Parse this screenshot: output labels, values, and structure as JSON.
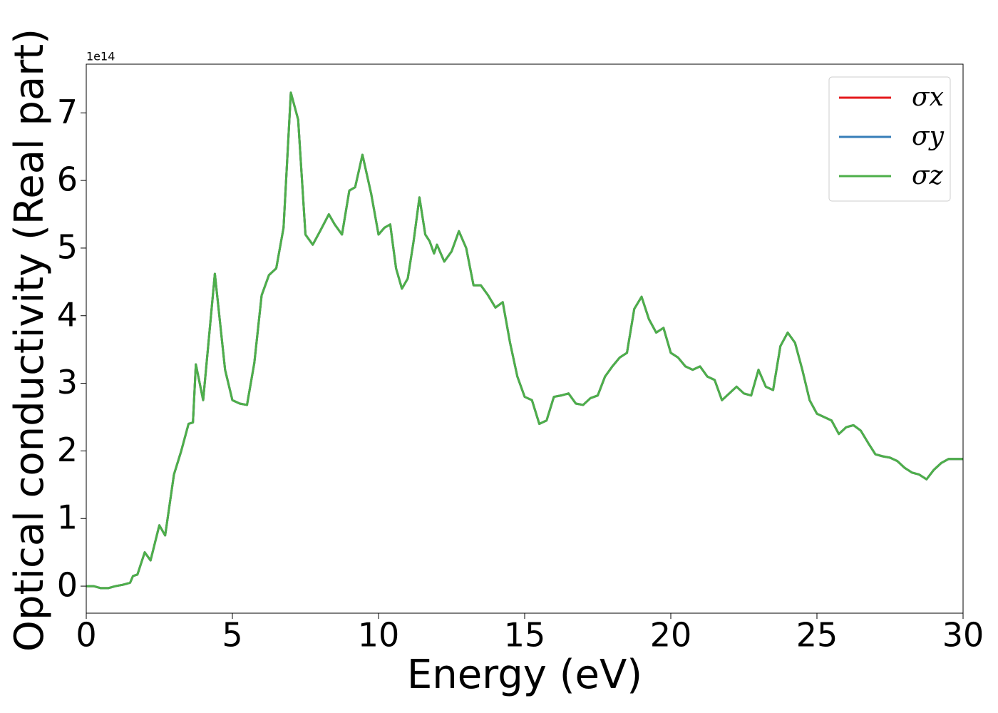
{
  "chart_data": {
    "type": "line",
    "xlabel": "Energy (eV)",
    "ylabel": "Optical conductivity (Real part)",
    "y_offset_label": "1e14",
    "x": [
      0,
      0.25,
      0.5,
      0.75,
      1.0,
      1.25,
      1.5,
      1.6,
      1.75,
      2.0,
      2.2,
      2.5,
      2.7,
      3.0,
      3.25,
      3.5,
      3.65,
      3.75,
      4.0,
      4.4,
      4.75,
      5.0,
      5.25,
      5.5,
      5.75,
      6.0,
      6.25,
      6.5,
      6.75,
      7.0,
      7.25,
      7.5,
      7.75,
      8.0,
      8.3,
      8.5,
      8.75,
      9.0,
      9.2,
      9.45,
      9.75,
      10.0,
      10.2,
      10.4,
      10.6,
      10.8,
      11.0,
      11.2,
      11.4,
      11.6,
      11.75,
      11.9,
      12.0,
      12.25,
      12.5,
      12.75,
      13.0,
      13.25,
      13.5,
      13.75,
      14.0,
      14.25,
      14.5,
      14.75,
      15.0,
      15.25,
      15.5,
      15.75,
      16.0,
      16.25,
      16.5,
      16.75,
      17.0,
      17.25,
      17.5,
      17.75,
      18.0,
      18.25,
      18.5,
      18.75,
      19.0,
      19.25,
      19.5,
      19.75,
      20.0,
      20.25,
      20.5,
      20.75,
      21.0,
      21.25,
      21.5,
      21.75,
      22.0,
      22.25,
      22.5,
      22.75,
      23.0,
      23.25,
      23.5,
      23.75,
      24.0,
      24.25,
      24.5,
      24.75,
      25.0,
      25.25,
      25.5,
      25.75,
      26.0,
      26.25,
      26.5,
      26.75,
      27.0,
      27.25,
      27.5,
      27.75,
      28.0,
      28.25,
      28.5,
      28.75,
      29.0,
      29.25,
      29.5,
      29.75,
      30.0
    ],
    "series": [
      {
        "name": "σx",
        "color": "#e41a1c",
        "values": [
          0,
          0,
          -0.03,
          -0.03,
          0,
          0.02,
          0.05,
          0.15,
          0.17,
          0.5,
          0.38,
          0.9,
          0.75,
          1.65,
          2.0,
          2.4,
          2.42,
          3.28,
          2.75,
          4.62,
          3.2,
          2.75,
          2.7,
          2.68,
          3.3,
          4.3,
          4.6,
          4.7,
          5.3,
          7.3,
          6.9,
          5.2,
          5.05,
          5.25,
          5.5,
          5.35,
          5.2,
          5.85,
          5.9,
          6.38,
          5.8,
          5.2,
          5.3,
          5.35,
          4.7,
          4.4,
          4.55,
          5.1,
          5.75,
          5.2,
          5.1,
          4.92,
          5.05,
          4.8,
          4.95,
          5.25,
          5.0,
          4.45,
          4.45,
          4.3,
          4.12,
          4.2,
          3.6,
          3.1,
          2.8,
          2.75,
          2.4,
          2.45,
          2.8,
          2.82,
          2.85,
          2.7,
          2.68,
          2.78,
          2.82,
          3.1,
          3.25,
          3.38,
          3.45,
          4.1,
          4.28,
          3.95,
          3.75,
          3.82,
          3.45,
          3.38,
          3.25,
          3.2,
          3.25,
          3.1,
          3.05,
          2.75,
          2.85,
          2.95,
          2.85,
          2.82,
          3.2,
          2.95,
          2.9,
          3.55,
          3.75,
          3.6,
          3.2,
          2.75,
          2.55,
          2.5,
          2.45,
          2.25,
          2.35,
          2.38,
          2.3,
          2.12,
          1.95,
          1.92,
          1.9,
          1.85,
          1.75,
          1.68,
          1.65,
          1.58,
          1.72,
          1.82,
          1.88,
          1.88,
          1.88
        ]
      },
      {
        "name": "σy",
        "color": "#377eb8",
        "values": [
          0,
          0,
          -0.03,
          -0.03,
          0,
          0.02,
          0.05,
          0.15,
          0.17,
          0.5,
          0.38,
          0.9,
          0.75,
          1.65,
          2.0,
          2.4,
          2.42,
          3.28,
          2.75,
          4.62,
          3.2,
          2.75,
          2.7,
          2.68,
          3.3,
          4.3,
          4.6,
          4.7,
          5.3,
          7.3,
          6.9,
          5.2,
          5.05,
          5.25,
          5.5,
          5.35,
          5.2,
          5.85,
          5.9,
          6.38,
          5.8,
          5.2,
          5.3,
          5.35,
          4.7,
          4.4,
          4.55,
          5.1,
          5.75,
          5.2,
          5.1,
          4.92,
          5.05,
          4.8,
          4.95,
          5.25,
          5.0,
          4.45,
          4.45,
          4.3,
          4.12,
          4.2,
          3.6,
          3.1,
          2.8,
          2.75,
          2.4,
          2.45,
          2.8,
          2.82,
          2.85,
          2.7,
          2.68,
          2.78,
          2.82,
          3.1,
          3.25,
          3.38,
          3.45,
          4.1,
          4.28,
          3.95,
          3.75,
          3.82,
          3.45,
          3.38,
          3.25,
          3.2,
          3.25,
          3.1,
          3.05,
          2.75,
          2.85,
          2.95,
          2.85,
          2.82,
          3.2,
          2.95,
          2.9,
          3.55,
          3.75,
          3.6,
          3.2,
          2.75,
          2.55,
          2.5,
          2.45,
          2.25,
          2.35,
          2.38,
          2.3,
          2.12,
          1.95,
          1.92,
          1.9,
          1.85,
          1.75,
          1.68,
          1.65,
          1.58,
          1.72,
          1.82,
          1.88,
          1.88,
          1.88
        ]
      },
      {
        "name": "σz",
        "color": "#4daf4a",
        "values": [
          0,
          0,
          -0.03,
          -0.03,
          0,
          0.02,
          0.05,
          0.15,
          0.17,
          0.5,
          0.38,
          0.9,
          0.75,
          1.65,
          2.0,
          2.4,
          2.42,
          3.28,
          2.75,
          4.62,
          3.2,
          2.75,
          2.7,
          2.68,
          3.3,
          4.3,
          4.6,
          4.7,
          5.3,
          7.3,
          6.9,
          5.2,
          5.05,
          5.25,
          5.5,
          5.35,
          5.2,
          5.85,
          5.9,
          6.38,
          5.8,
          5.2,
          5.3,
          5.35,
          4.7,
          4.4,
          4.55,
          5.1,
          5.75,
          5.2,
          5.1,
          4.92,
          5.05,
          4.8,
          4.95,
          5.25,
          5.0,
          4.45,
          4.45,
          4.3,
          4.12,
          4.2,
          3.6,
          3.1,
          2.8,
          2.75,
          2.4,
          2.45,
          2.8,
          2.82,
          2.85,
          2.7,
          2.68,
          2.78,
          2.82,
          3.1,
          3.25,
          3.38,
          3.45,
          4.1,
          4.28,
          3.95,
          3.75,
          3.82,
          3.45,
          3.38,
          3.25,
          3.2,
          3.25,
          3.1,
          3.05,
          2.75,
          2.85,
          2.95,
          2.85,
          2.82,
          3.2,
          2.95,
          2.9,
          3.55,
          3.75,
          3.6,
          3.2,
          2.75,
          2.55,
          2.5,
          2.45,
          2.25,
          2.35,
          2.38,
          2.3,
          2.12,
          1.95,
          1.92,
          1.9,
          1.85,
          1.75,
          1.68,
          1.65,
          1.58,
          1.72,
          1.82,
          1.88,
          1.88,
          1.88
        ]
      }
    ],
    "xlim": [
      0,
      30
    ],
    "xticks": [
      0,
      5,
      10,
      15,
      20,
      25,
      30
    ],
    "ylim": [
      -0.4,
      7.72
    ],
    "yticks": [
      0,
      1,
      2,
      3,
      4,
      5,
      6,
      7
    ],
    "grid": false,
    "legend": "upper right"
  }
}
